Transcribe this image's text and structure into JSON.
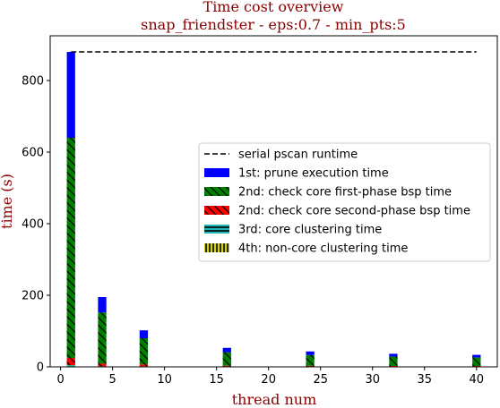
{
  "chart_data": {
    "type": "bar",
    "title": "Time cost overview",
    "subtitle": "snap_friendster - eps:0.7 - min_pts:5",
    "xlabel": "thread num",
    "ylabel": "time (s)",
    "xlim": [
      -1,
      42
    ],
    "ylim": [
      0,
      925
    ],
    "xticks": [
      0,
      5,
      10,
      15,
      20,
      25,
      30,
      35,
      40
    ],
    "yticks": [
      0,
      200,
      400,
      600,
      800
    ],
    "x": [
      1,
      4,
      8,
      16,
      24,
      32,
      40
    ],
    "bar_width_units": 0.8,
    "serial_runtime": {
      "name": "serial pscan runtime",
      "value": 880,
      "x_range": [
        1,
        40
      ],
      "color": "#000000"
    },
    "series": [
      {
        "name": "4th: non-core clustering time",
        "values": [
          2,
          1,
          1,
          0.5,
          0.5,
          0.5,
          0.5
        ],
        "color": "#d4d400",
        "pattern": "vertical"
      },
      {
        "name": "3rd: core clustering time",
        "values": [
          3,
          1,
          1,
          0.5,
          0.5,
          0.5,
          0.5
        ],
        "color": "#1fb5b5",
        "pattern": "horizontal"
      },
      {
        "name": "2nd: check core second-phase bsp time",
        "values": [
          20,
          7,
          5,
          2,
          2,
          1.5,
          1.5
        ],
        "color": "#ff0000",
        "pattern": "diagonal"
      },
      {
        "name": "2nd: check core first-phase bsp time",
        "values": [
          615,
          143,
          73,
          38,
          30,
          26,
          24
        ],
        "color": "#008000",
        "pattern": "diagonal"
      },
      {
        "name": "1st: prune execution time",
        "values": [
          240,
          43,
          22,
          12,
          10,
          8,
          7
        ],
        "color": "#0000ff",
        "pattern": "none"
      }
    ],
    "legend": {
      "placement": "center-right",
      "order": [
        "serial pscan runtime",
        "1st: prune execution time",
        "2nd: check core first-phase bsp time",
        "2nd: check core second-phase bsp time",
        "3rd: core clustering time",
        "4th: non-core clustering time"
      ]
    },
    "grid": false
  }
}
